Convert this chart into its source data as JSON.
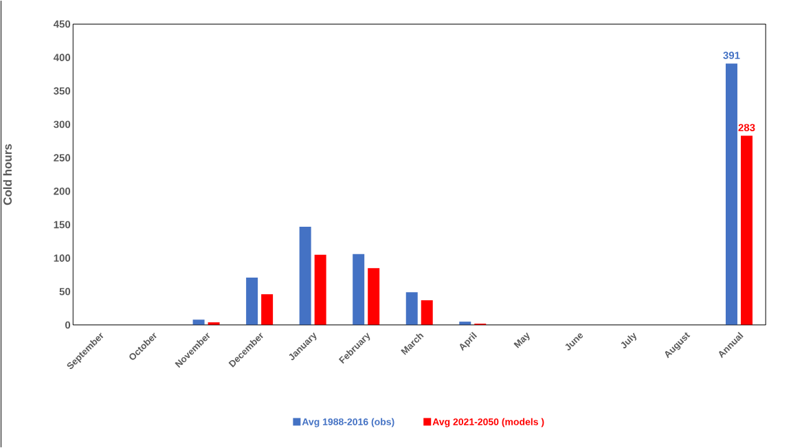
{
  "chart_data": {
    "type": "bar",
    "ylabel": "Cold hours",
    "categories": [
      "September",
      "October",
      "November",
      "December",
      "January",
      "February",
      "March",
      "April",
      "May",
      "June",
      "July",
      "August",
      "Annual"
    ],
    "series": [
      {
        "name": "Avg 1988-2016 (obs)",
        "color": "#4472c4",
        "values": [
          0,
          0,
          8,
          71,
          147,
          106,
          49,
          5,
          0,
          0,
          0,
          0,
          391
        ],
        "value_labels": [
          null,
          null,
          null,
          null,
          null,
          null,
          null,
          null,
          null,
          null,
          null,
          null,
          "391"
        ]
      },
      {
        "name": "Avg 2021-2050 (models )",
        "color": "#ff0000",
        "values": [
          0,
          0,
          4,
          46,
          105,
          85,
          37,
          2,
          0,
          0,
          0,
          0,
          283
        ],
        "value_labels": [
          null,
          null,
          null,
          null,
          null,
          null,
          null,
          null,
          null,
          null,
          null,
          null,
          "283"
        ]
      }
    ],
    "ylim": [
      0,
      450
    ],
    "yticks": [
      0,
      50,
      100,
      150,
      200,
      250,
      300,
      350,
      400,
      450
    ],
    "grid": false,
    "legend": "bottom"
  }
}
